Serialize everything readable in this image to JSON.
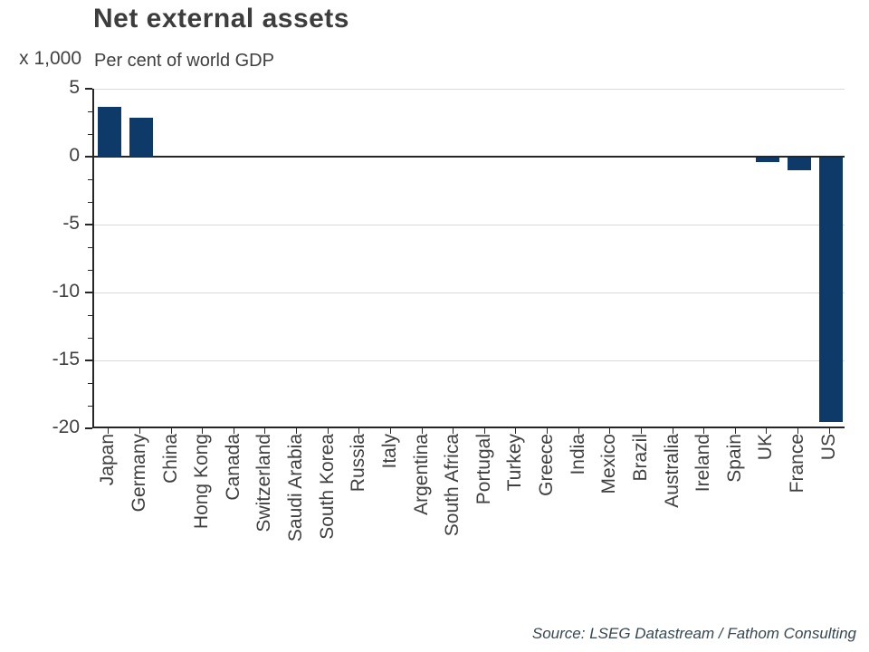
{
  "header": {
    "title": "Net external assets",
    "subtitle": "Per cent of world GDP",
    "axis_multiplier": "x 1,000"
  },
  "footer": {
    "source": "Source: LSEG Datastream / Fathom Consulting"
  },
  "colors": {
    "bar": "#0d3a68",
    "gridline": "#d9d9d9",
    "axis": "#262626",
    "text": "#404040",
    "source_text": "#37474f"
  },
  "chart_data": {
    "type": "bar",
    "title": "Net external assets",
    "subtitle": "Per cent of world GDP",
    "unit_label": "x 1,000",
    "categories": [
      "Japan",
      "Germany",
      "China",
      "Hong Kong",
      "Canada",
      "Switzerland",
      "Saudi Arabia",
      "South Korea",
      "Russia",
      "Italy",
      "Argentina",
      "South Africa",
      "Portugal",
      "Turkey",
      "Greece",
      "India",
      "Mexico",
      "Brazil",
      "Australia",
      "Ireland",
      "Spain",
      "UK",
      "France",
      "US"
    ],
    "values": [
      3.7,
      2.9,
      0,
      0,
      0,
      0,
      0,
      0,
      0,
      0,
      0,
      0,
      0,
      0,
      0,
      0,
      0,
      0,
      0,
      0,
      0,
      -0.4,
      -1.0,
      -19.5
    ],
    "xlabel": "",
    "ylabel": "",
    "ylim": [
      -20,
      5
    ],
    "yticks": [
      5,
      0,
      -5,
      -10,
      -15,
      -20
    ],
    "minor_tick_subdivisions": 3,
    "grid": "horizontal-light",
    "legend_position": "none",
    "bar_color": "#0d3a68",
    "source": "Source: LSEG Datastream / Fathom Consulting"
  }
}
